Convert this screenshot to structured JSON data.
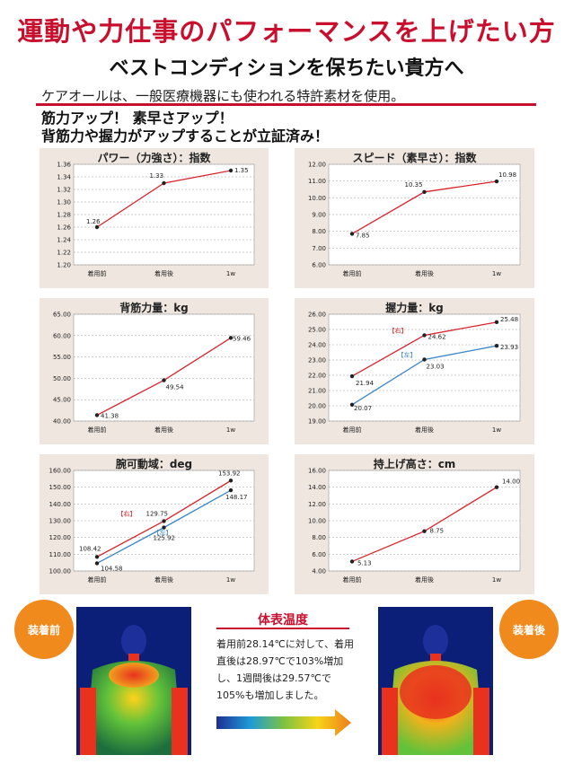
{
  "headline": "運動や力仕事のパフォーマンスを上げたい方",
  "subheadline": "ベストコンディションを保ちたい貴方へ",
  "intro": "ケアオールは、一般医療機器にも使われる特許素材を使用。",
  "claim": [
    "筋力アップ！ 素早さアップ！",
    "背筋力や握力がアップすることが立証済み！"
  ],
  "colors": {
    "accent": "#c8102e",
    "series_right": "#d7242b",
    "series_left": "#3b86c9",
    "badge": "#f08a1c",
    "panel_bg": "#efe6df"
  },
  "chart_data": [
    {
      "type": "line",
      "title": "パワー（力強さ）：指数",
      "categories": [
        "着用前",
        "着用後",
        "1w"
      ],
      "ylim": [
        1.2,
        1.36
      ],
      "yticks": [
        "1.20",
        "1.22",
        "1.24",
        "1.26",
        "1.28",
        "1.30",
        "1.32",
        "1.34",
        "1.36"
      ],
      "series": [
        {
          "values": [
            1.26,
            1.33,
            1.35
          ],
          "labels": [
            "1.26",
            "1.33",
            "1.35"
          ]
        }
      ]
    },
    {
      "type": "line",
      "title": "スピード（素早さ）：指数",
      "categories": [
        "着用前",
        "着用後",
        "1w"
      ],
      "ylim": [
        6.0,
        12.0
      ],
      "yticks": [
        "6.00",
        "7.00",
        "8.00",
        "9.00",
        "10.00",
        "11.00",
        "12.00"
      ],
      "series": [
        {
          "values": [
            7.85,
            10.35,
            10.98
          ],
          "labels": [
            "7.85",
            "10.35",
            "10.98"
          ]
        }
      ]
    },
    {
      "type": "line",
      "title": "背筋力量：kg",
      "categories": [
        "着用前",
        "着用後",
        "1w"
      ],
      "ylim": [
        40.0,
        65.0
      ],
      "yticks": [
        "40.00",
        "45.00",
        "50.00",
        "55.00",
        "60.00",
        "65.00"
      ],
      "series": [
        {
          "values": [
            41.38,
            49.54,
            59.46
          ],
          "labels": [
            "41.38",
            "49.54",
            "59.46"
          ]
        }
      ]
    },
    {
      "type": "line",
      "title": "握力量：kg",
      "categories": [
        "着用前",
        "着用後",
        "1w"
      ],
      "ylim": [
        19.0,
        26.0
      ],
      "yticks": [
        "19.00",
        "20.00",
        "21.00",
        "22.00",
        "23.00",
        "24.00",
        "25.00",
        "26.00"
      ],
      "series": [
        {
          "name": "【右】",
          "values": [
            21.94,
            24.62,
            25.48
          ],
          "labels": [
            "21.94",
            "24.62",
            "25.48"
          ]
        },
        {
          "name": "【左】",
          "values": [
            20.07,
            23.03,
            23.93
          ],
          "labels": [
            "20.07",
            "23.03",
            "23.93"
          ]
        }
      ]
    },
    {
      "type": "line",
      "title": "腕可動域：deg",
      "categories": [
        "着用前",
        "着用後",
        "1w"
      ],
      "ylim": [
        100.0,
        160.0
      ],
      "yticks": [
        "100.00",
        "110.00",
        "120.00",
        "130.00",
        "140.00",
        "150.00",
        "160.00"
      ],
      "series": [
        {
          "name": "【右】",
          "values": [
            108.42,
            129.75,
            153.92
          ],
          "labels": [
            "108.42",
            "129.75",
            "153.92"
          ]
        },
        {
          "name": "【左】",
          "values": [
            104.58,
            125.92,
            148.17
          ],
          "labels": [
            "104.58",
            "125.92",
            "148.17"
          ]
        }
      ]
    },
    {
      "type": "line",
      "title": "持上げ高さ：cm",
      "categories": [
        "着用前",
        "着用後",
        "1w"
      ],
      "ylim": [
        4.0,
        16.0
      ],
      "yticks": [
        "4.00",
        "6.00",
        "8.00",
        "10.00",
        "12.00",
        "14.00",
        "16.00"
      ],
      "series": [
        {
          "values": [
            5.13,
            8.75,
            14.0
          ],
          "labels": [
            "5.13",
            "8.75",
            "14.00"
          ]
        }
      ]
    }
  ],
  "thermal": {
    "before_label": "装着前",
    "after_label": "装着後",
    "title": "体表温度",
    "text": "着用前28.14℃に対して、着用直後は28.97℃で103%増加し、1週間後は29.57℃で105%も増加しました。"
  }
}
